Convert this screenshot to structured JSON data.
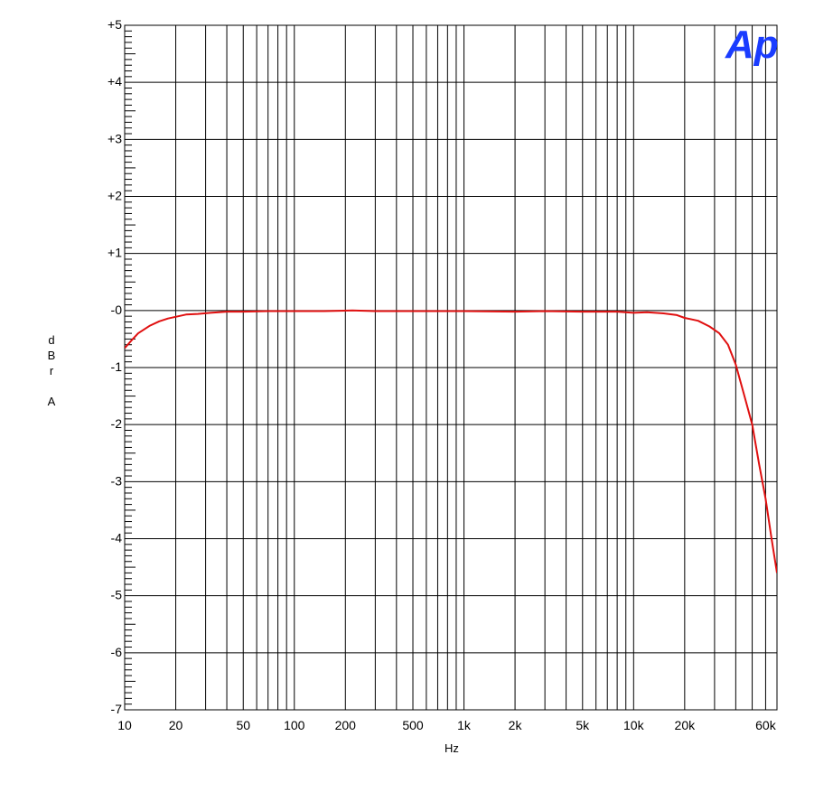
{
  "chart_data": {
    "type": "line",
    "xlabel": "Hz",
    "ylabel": "dBr A",
    "x_scale": "log",
    "xlim": [
      10,
      70000
    ],
    "ylim": [
      -7,
      5
    ],
    "grid": true,
    "x_ticks": [
      {
        "value": 10,
        "label": "10"
      },
      {
        "value": 20,
        "label": "20"
      },
      {
        "value": 50,
        "label": "50"
      },
      {
        "value": 100,
        "label": "100"
      },
      {
        "value": 200,
        "label": "200"
      },
      {
        "value": 500,
        "label": "500"
      },
      {
        "value": 1000,
        "label": "1k"
      },
      {
        "value": 2000,
        "label": "2k"
      },
      {
        "value": 5000,
        "label": "5k"
      },
      {
        "value": 10000,
        "label": "10k"
      },
      {
        "value": 20000,
        "label": "20k"
      },
      {
        "value": 60000,
        "label": "60k"
      }
    ],
    "y_ticks": [
      {
        "value": 5,
        "label": "+5"
      },
      {
        "value": 4,
        "label": "+4"
      },
      {
        "value": 3,
        "label": "+3"
      },
      {
        "value": 2,
        "label": "+2"
      },
      {
        "value": 1,
        "label": "+1"
      },
      {
        "value": 0,
        "label": "-0"
      },
      {
        "value": -1,
        "label": "-1"
      },
      {
        "value": -2,
        "label": "-2"
      },
      {
        "value": -3,
        "label": "-3"
      },
      {
        "value": -4,
        "label": "-4"
      },
      {
        "value": -5,
        "label": "-5"
      },
      {
        "value": -6,
        "label": "-6"
      },
      {
        "value": -7,
        "label": "-7"
      }
    ],
    "series": [
      {
        "color": "#e01010",
        "points": [
          [
            10,
            -0.66
          ],
          [
            11,
            -0.52
          ],
          [
            12,
            -0.4
          ],
          [
            14,
            -0.27
          ],
          [
            16,
            -0.19
          ],
          [
            18,
            -0.14
          ],
          [
            20,
            -0.11
          ],
          [
            23,
            -0.07
          ],
          [
            27,
            -0.06
          ],
          [
            32,
            -0.04
          ],
          [
            40,
            -0.02
          ],
          [
            50,
            -0.02
          ],
          [
            70,
            -0.01
          ],
          [
            100,
            -0.01
          ],
          [
            150,
            -0.01
          ],
          [
            220,
            0.0
          ],
          [
            300,
            -0.01
          ],
          [
            500,
            -0.01
          ],
          [
            1000,
            -0.01
          ],
          [
            2000,
            -0.02
          ],
          [
            3000,
            -0.01
          ],
          [
            5000,
            -0.02
          ],
          [
            8000,
            -0.02
          ],
          [
            10000,
            -0.04
          ],
          [
            12000,
            -0.03
          ],
          [
            15000,
            -0.05
          ],
          [
            18000,
            -0.08
          ],
          [
            20000,
            -0.13
          ],
          [
            24000,
            -0.18
          ],
          [
            28000,
            -0.28
          ],
          [
            32000,
            -0.4
          ],
          [
            36000,
            -0.6
          ],
          [
            40000,
            -0.95
          ],
          [
            45000,
            -1.5
          ],
          [
            50000,
            -2.0
          ],
          [
            55000,
            -2.7
          ],
          [
            60000,
            -3.3
          ],
          [
            65000,
            -4.0
          ],
          [
            70000,
            -4.6
          ]
        ]
      }
    ]
  },
  "logo": {
    "text": "Ap",
    "color": "#1a3cff"
  }
}
